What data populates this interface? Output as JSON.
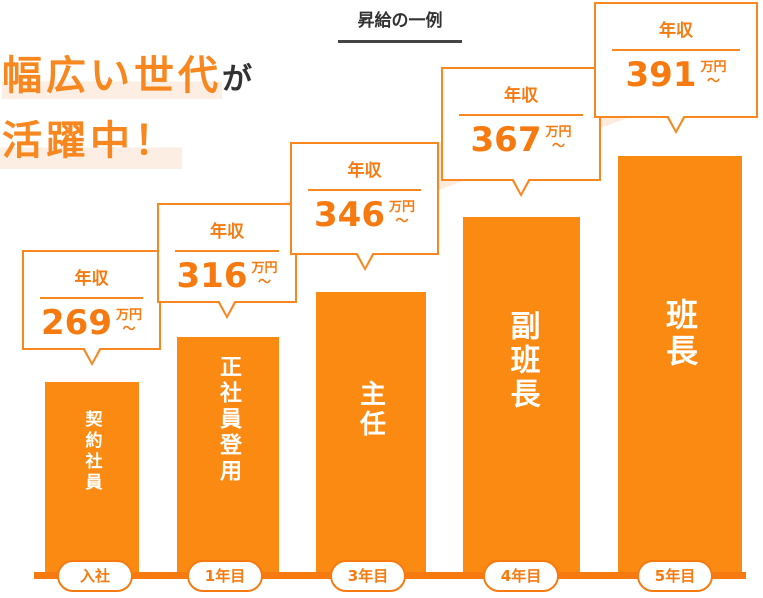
{
  "title": "昇給の一例",
  "headline": {
    "line1": "幅広い世代",
    "line1_suffix": "が",
    "line2": "活躍中！"
  },
  "chart_data": {
    "type": "bar",
    "title": "昇給の一例",
    "categories": [
      "入社",
      "1年目",
      "3年目",
      "4年目",
      "5年目"
    ],
    "positions": [
      "契約社員",
      "正社員登用",
      "主任",
      "副班長",
      "班長"
    ],
    "values": [
      269,
      316,
      346,
      367,
      391
    ],
    "value_label": "年収",
    "unit": "万円〜",
    "bar_color": "#fb8a12",
    "accent_color": "#f7871e"
  },
  "callouts": [
    {
      "label": "年収",
      "value": "269",
      "unit1": "万円",
      "unit2": "〜"
    },
    {
      "label": "年収",
      "value": "316",
      "unit1": "万円",
      "unit2": "〜"
    },
    {
      "label": "年収",
      "value": "346",
      "unit1": "万円",
      "unit2": "〜"
    },
    {
      "label": "年収",
      "value": "367",
      "unit1": "万円",
      "unit2": "〜"
    },
    {
      "label": "年収",
      "value": "391",
      "unit1": "万円",
      "unit2": "〜"
    }
  ]
}
